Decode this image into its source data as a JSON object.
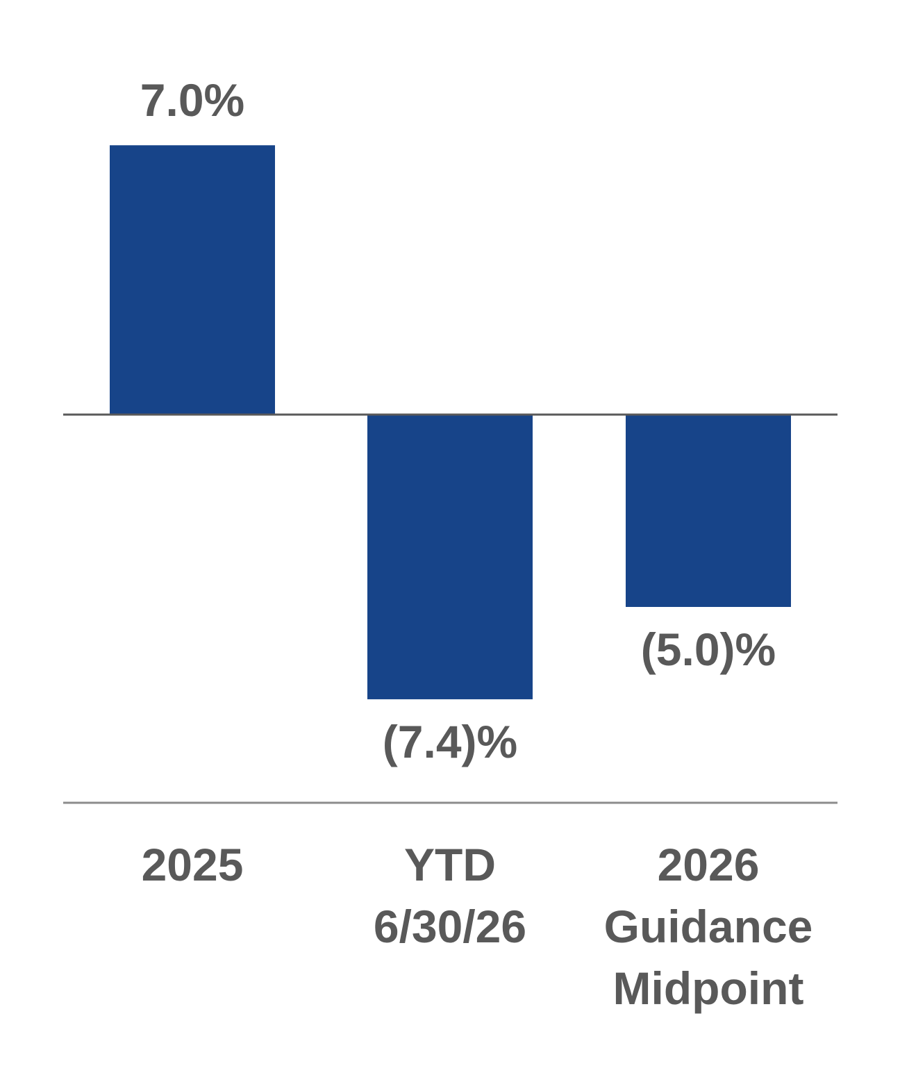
{
  "chart_data": {
    "type": "bar",
    "categories": [
      [
        "2025"
      ],
      [
        "YTD",
        "6/30/26"
      ],
      [
        "2026",
        "Guidance",
        "Midpoint"
      ]
    ],
    "values": [
      7.0,
      -7.4,
      -5.0
    ],
    "value_labels": [
      "7.0%",
      "(7.4)%",
      "(5.0)%"
    ],
    "title": "",
    "xlabel": "",
    "ylabel": "",
    "grid": false,
    "legend": "none",
    "colors": {
      "bar": "#174489",
      "zero_line": "#595959",
      "axis_line": "#8c8c8c",
      "text": "#595959"
    }
  }
}
